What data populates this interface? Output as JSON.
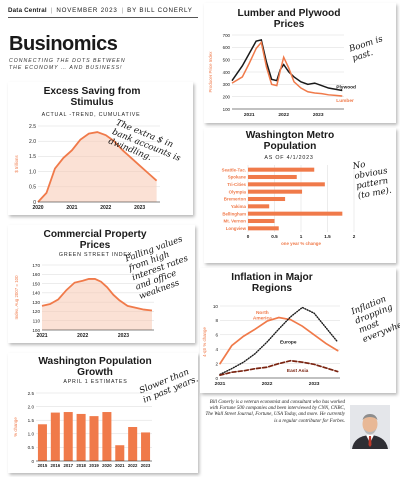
{
  "header": {
    "section": "Data Central",
    "date": "NOVEMBER 2023",
    "byline": "BY BILL CONERLY"
  },
  "brand": {
    "title": "Businomics",
    "tagline_1": "CONNECTING THE DOTS BETWEEN",
    "tagline_2": "THE ECONOMY … AND BUSINESS!"
  },
  "colors": {
    "accent": "#f07a4a",
    "ink": "#1a1a1a"
  },
  "chart_data": [
    {
      "id": "excess-saving",
      "type": "area",
      "title": "Excess Saving from Stimulus",
      "subtitle": "ACTUAL -TREND, CUMULATIVE",
      "ylabel": "$ trillions",
      "ylim": [
        0,
        2.5
      ],
      "yticks": [
        "0",
        "0.5",
        "1.0",
        "1.5",
        "2.0",
        "2.5"
      ],
      "xticks": [
        "2020",
        "2021",
        "2022",
        "2023"
      ],
      "x": [
        2020.0,
        2020.25,
        2020.5,
        2020.75,
        2021.0,
        2021.25,
        2021.5,
        2021.75,
        2022.0,
        2022.25,
        2022.5,
        2022.75,
        2023.0,
        2023.25,
        2023.5
      ],
      "y": [
        0,
        0.3,
        1.1,
        1.45,
        1.7,
        2.05,
        2.25,
        2.3,
        2.2,
        2.0,
        1.7,
        1.45,
        1.2,
        0.95,
        0.7
      ],
      "note": "The extra $ in bank accounts is dwindling."
    },
    {
      "id": "commercial-property",
      "type": "area",
      "title": "Commercial Property Prices",
      "subtitle": "GREEN STREET INDEX",
      "ylabel": "Index, Aug 2007 = 100",
      "ylim": [
        100,
        170
      ],
      "yticks": [
        "100",
        "110",
        "120",
        "130",
        "140",
        "150",
        "160",
        "170"
      ],
      "xticks": [
        "2021",
        "2022",
        "2023"
      ],
      "x": [
        2021.0,
        2021.2,
        2021.4,
        2021.6,
        2021.8,
        2022.0,
        2022.15,
        2022.3,
        2022.45,
        2022.6,
        2022.75,
        2022.9,
        2023.1,
        2023.3,
        2023.5,
        2023.7
      ],
      "y": [
        126,
        128,
        133,
        143,
        151,
        153,
        155,
        155,
        152,
        146,
        138,
        132,
        126,
        124,
        122,
        121
      ],
      "note": "Falling values from high interest rates and office weakness"
    },
    {
      "id": "lumber-plywood",
      "type": "line",
      "title": "Lumber and Plywood Prices",
      "ylabel": "Producer Price Index",
      "ylim": [
        100,
        700
      ],
      "yticks": [
        "100",
        "200",
        "300",
        "400",
        "500",
        "600",
        "700"
      ],
      "xticks": [
        "2021",
        "2022",
        "2023"
      ],
      "series": [
        {
          "name": "Plywood",
          "x": [
            2020.5,
            2020.8,
            2021.0,
            2021.2,
            2021.35,
            2021.5,
            2021.65,
            2021.8,
            2021.9,
            2022.0,
            2022.15,
            2022.3,
            2022.5,
            2022.7,
            2022.9,
            2023.1,
            2023.3,
            2023.5,
            2023.7
          ],
          "y": [
            330,
            450,
            550,
            650,
            660,
            480,
            340,
            330,
            420,
            460,
            400,
            360,
            320,
            300,
            310,
            290,
            270,
            260,
            250
          ]
        },
        {
          "name": "Lumber",
          "x": [
            2020.5,
            2020.8,
            2021.0,
            2021.2,
            2021.35,
            2021.5,
            2021.65,
            2021.8,
            2021.9,
            2022.0,
            2022.15,
            2022.3,
            2022.5,
            2022.7,
            2022.9,
            2023.1,
            2023.3,
            2023.5,
            2023.7
          ],
          "y": [
            310,
            360,
            470,
            590,
            640,
            440,
            300,
            290,
            410,
            520,
            430,
            320,
            270,
            240,
            230,
            225,
            215,
            210,
            205
          ]
        }
      ],
      "note": "Boom is past."
    },
    {
      "id": "metro-population",
      "type": "bar",
      "title": "Washington Metro Population",
      "subtitle": "AS OF 4/1/2023",
      "xlabel": "one year % change",
      "xlim": [
        0,
        2
      ],
      "xticks": [
        "0",
        "0.5",
        "1",
        "1.5",
        "2"
      ],
      "categories": [
        "Seattle-Tac.",
        "Spokane",
        "Tri-Cities",
        "Olympia",
        "Bremerton",
        "Yakima",
        "Bellingham",
        "Mt. Vernon",
        "Longview"
      ],
      "values": [
        1.25,
        0.92,
        1.45,
        1.02,
        0.7,
        0.4,
        1.78,
        0.5,
        0.58
      ],
      "note": "No obvious pattern (to me)."
    },
    {
      "id": "inflation",
      "type": "line",
      "title": "Inflation in Major Regions",
      "ylabel": "4-qtr % change",
      "ylim": [
        0,
        10
      ],
      "yticks": [
        "0",
        "2",
        "4",
        "6",
        "8",
        "10"
      ],
      "xticks": [
        "2021",
        "2022",
        "2023"
      ],
      "series": [
        {
          "name": "North America",
          "style": "solid",
          "x": [
            2021.0,
            2021.25,
            2021.5,
            2021.75,
            2022.0,
            2022.25,
            2022.5,
            2022.75,
            2023.0,
            2023.25,
            2023.5
          ],
          "y": [
            2.0,
            4.5,
            5.8,
            6.8,
            7.9,
            8.4,
            8.1,
            7.2,
            6.0,
            4.8,
            3.8
          ]
        },
        {
          "name": "Europe",
          "style": "dotted",
          "x": [
            2021.0,
            2021.25,
            2021.5,
            2021.75,
            2022.0,
            2022.25,
            2022.5,
            2022.75,
            2023.0,
            2023.25,
            2023.5
          ],
          "y": [
            0.5,
            1.3,
            2.2,
            3.4,
            5.0,
            6.8,
            8.5,
            9.8,
            9.0,
            7.0,
            5.0
          ]
        },
        {
          "name": "East Asia",
          "style": "dashed",
          "x": [
            2021.0,
            2021.25,
            2021.5,
            2021.75,
            2022.0,
            2022.25,
            2022.5,
            2022.75,
            2023.0,
            2023.25,
            2023.5
          ],
          "y": [
            0.4,
            0.8,
            1.0,
            1.3,
            1.5,
            2.0,
            2.4,
            2.2,
            1.9,
            1.4,
            0.9
          ]
        }
      ],
      "note": "Inflation dropping most everywhere"
    },
    {
      "id": "population-growth",
      "type": "bar",
      "title": "Washington Population Growth",
      "subtitle": "APRIL 1 ESTIMATES",
      "ylabel": "% change",
      "ylim": [
        0,
        2.5
      ],
      "yticks": [
        "0",
        "0.5",
        "1.0",
        "1.5",
        "2.0",
        "2.5"
      ],
      "categories": [
        "2015",
        "2016",
        "2017",
        "2018",
        "2019",
        "2020",
        "2021",
        "2022",
        "2023"
      ],
      "values": [
        1.35,
        1.78,
        1.8,
        1.73,
        1.65,
        1.8,
        0.58,
        1.25,
        1.05
      ],
      "note": "Slower than in past years."
    }
  ],
  "bio": {
    "text": "Bill Conerly is a veteran economist and consultant who has worked with Fortune 500 companies and been interviewed by CNN, CNBC, The Wall Street Journal, Fortune, USA Today, and more. He currently is a regular contributor for Forbes."
  }
}
